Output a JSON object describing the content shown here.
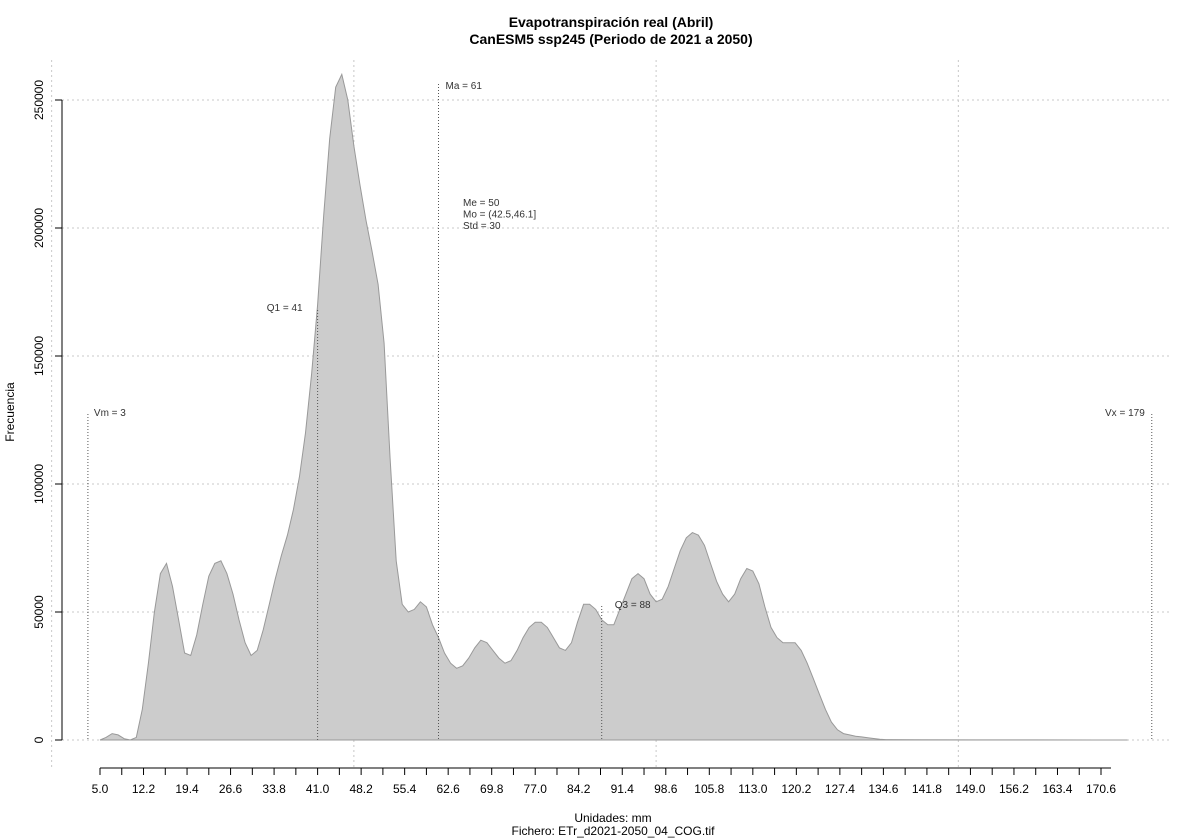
{
  "chart_data": {
    "type": "area",
    "title": "Evapotranspiración real (Abril)",
    "subtitle": "CanESM5 ssp245 (Periodo de 2021 a 2050)",
    "xlabel": "Unidades: mm",
    "ylabel": "Frecuencia",
    "footer": "Fichero: ETr_d2021-2050_04_COG.tif",
    "xlim": [
      5.0,
      177.8
    ],
    "ylim": [
      0,
      250000
    ],
    "x_ticks": [
      5.0,
      12.2,
      19.4,
      26.6,
      33.8,
      41.0,
      48.2,
      55.4,
      62.6,
      69.8,
      77.0,
      84.2,
      91.4,
      98.6,
      105.8,
      113.0,
      120.2,
      127.4,
      134.6,
      141.8,
      149.0,
      156.2,
      163.4,
      170.6
    ],
    "x_tick_labels": [
      "5.0",
      "12.2",
      "19.4",
      "26.6",
      "33.8",
      "41.0",
      "48.2",
      "55.4",
      "62.6",
      "69.8",
      "77.0",
      "84.2",
      "91.4",
      "98.6",
      "105.8",
      "113.0",
      "120.2",
      "127.4",
      "134.6",
      "141.8",
      "149.0",
      "156.2",
      "163.4",
      "170.6"
    ],
    "y_ticks": [
      0,
      50000,
      100000,
      150000,
      200000,
      250000
    ],
    "y_tick_labels": [
      "0",
      "50000",
      "100000",
      "150000",
      "200000",
      "250000"
    ],
    "grid": true,
    "fill_color": "#cccccc",
    "line_color": "#999999",
    "series": [
      {
        "x": [
          5.0,
          6.0,
          7.0,
          8.0,
          9.0,
          10.0,
          11.0,
          12.0,
          13.0,
          14.0,
          15.0,
          16.0,
          17.0,
          18.0,
          19.0,
          20.0,
          21.0,
          22.0,
          23.0,
          24.0,
          25.0,
          26.0,
          27.0,
          28.0,
          29.0,
          30.0,
          31.0,
          32.0,
          33.0,
          34.0,
          35.0,
          36.0,
          37.0,
          38.0,
          39.0,
          40.0,
          41.0,
          42.0,
          43.0,
          44.0,
          45.0,
          46.0,
          47.0,
          48.0,
          49.0,
          50.0,
          51.0,
          52.0,
          53.0,
          54.0,
          55.0,
          56.0,
          57.0,
          58.0,
          59.0,
          60.0,
          61.0,
          62.0,
          63.0,
          64.0,
          65.0,
          66.0,
          67.0,
          68.0,
          69.0,
          70.0,
          71.0,
          72.0,
          73.0,
          74.0,
          75.0,
          76.0,
          77.0,
          78.0,
          79.0,
          80.0,
          81.0,
          82.0,
          83.0,
          84.0,
          85.0,
          86.0,
          87.0,
          88.0,
          89.0,
          90.0,
          91.0,
          92.0,
          93.0,
          94.0,
          95.0,
          96.0,
          97.0,
          98.0,
          99.0,
          100.0,
          101.0,
          102.0,
          103.0,
          104.0,
          105.0,
          106.0,
          107.0,
          108.0,
          109.0,
          110.0,
          111.0,
          112.0,
          113.0,
          114.0,
          115.0,
          116.0,
          117.0,
          118.0,
          119.0,
          120.0,
          121.0,
          122.0,
          123.0,
          124.0,
          125.0,
          126.0,
          127.0,
          128.0,
          129.0,
          130.0,
          131.0,
          132.0,
          133.0,
          134.0,
          135.0,
          140.0,
          150.0,
          160.0,
          170.0,
          175.0
        ],
        "y": [
          0,
          1000,
          2500,
          2000,
          500,
          0,
          1000,
          12000,
          30000,
          50000,
          65000,
          69000,
          60000,
          47000,
          34000,
          33000,
          41000,
          53000,
          64000,
          69000,
          70000,
          65000,
          57000,
          47000,
          38000,
          33000,
          35000,
          43000,
          53000,
          63000,
          72000,
          80000,
          90000,
          103000,
          120000,
          143000,
          170000,
          205000,
          235000,
          255000,
          260000,
          250000,
          232000,
          217000,
          203000,
          191000,
          178000,
          155000,
          110000,
          70000,
          53000,
          50000,
          51000,
          54000,
          52000,
          45000,
          40000,
          34000,
          30000,
          28000,
          29000,
          32000,
          36000,
          39000,
          38000,
          35000,
          32000,
          30000,
          31000,
          35000,
          40000,
          44000,
          46000,
          46000,
          44000,
          40000,
          36000,
          35000,
          38000,
          46000,
          53000,
          53000,
          51000,
          47000,
          45000,
          45000,
          51000,
          57000,
          63000,
          65000,
          63000,
          57000,
          54000,
          55000,
          60000,
          67000,
          74000,
          79000,
          81000,
          80000,
          76000,
          69000,
          62000,
          57000,
          54000,
          57000,
          63000,
          67000,
          66000,
          61000,
          52000,
          44000,
          40000,
          38000,
          38000,
          38000,
          35000,
          30000,
          24000,
          18000,
          12000,
          7000,
          4000,
          2500,
          2000,
          1500,
          1200,
          900,
          600,
          300,
          150,
          80,
          50,
          30,
          10,
          0
        ]
      }
    ],
    "annotations": {
      "vm": {
        "label": "Vm = 3",
        "x": 3
      },
      "vx": {
        "label": "Vx = 179",
        "x": 179
      },
      "q1": {
        "label": "Q1 = 41",
        "x": 41
      },
      "ma": {
        "label": "Ma = 61",
        "x": 61
      },
      "q3": {
        "label": "Q3 = 88",
        "x": 88
      },
      "stats": [
        "Me = 50",
        "Mo = (42.5,46.1]",
        "Std = 30"
      ]
    }
  }
}
